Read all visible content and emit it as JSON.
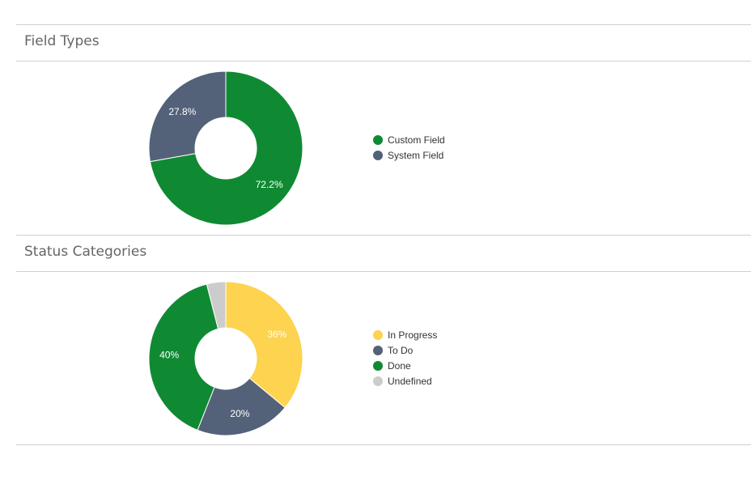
{
  "sections": [
    {
      "title": "Field Types"
    },
    {
      "title": "Status Categories"
    }
  ],
  "chart_data": [
    {
      "type": "pie",
      "title": "Field Types",
      "categories": [
        "Custom Field",
        "System Field"
      ],
      "values": [
        72.2,
        27.8
      ],
      "labels": [
        "72.2%",
        "27.8%"
      ],
      "colors": [
        "#0f8a33",
        "#536179"
      ],
      "legend_placement": "right"
    },
    {
      "type": "pie",
      "title": "Status Categories",
      "categories": [
        "In Progress",
        "To Do",
        "Done",
        "Undefined"
      ],
      "values": [
        36,
        20,
        40,
        4
      ],
      "labels": [
        "36%",
        "20%",
        "40%",
        ""
      ],
      "colors": [
        "#fdd34f",
        "#536179",
        "#0f8a33",
        "#cccccc"
      ],
      "legend_placement": "right"
    }
  ]
}
